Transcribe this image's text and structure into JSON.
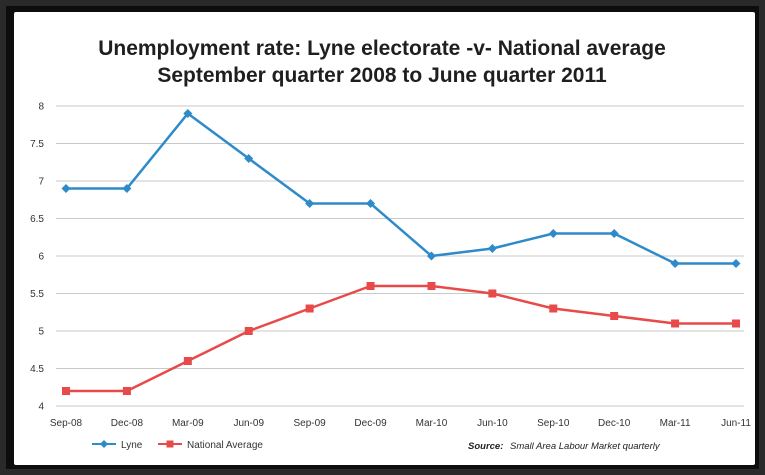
{
  "chart_data": {
    "type": "line",
    "title_line1": "Unemployment rate: Lyne electorate -v- National average",
    "title_line2": "September quarter 2008 to June quarter 2011",
    "categories": [
      "Sep-08",
      "Dec-08",
      "Mar-09",
      "Jun-09",
      "Sep-09",
      "Dec-09",
      "Mar-10",
      "Jun-10",
      "Sep-10",
      "Dec-10",
      "Mar-11",
      "Jun-11"
    ],
    "yticks": [
      "4",
      "4.5",
      "5",
      "5.5",
      "6",
      "6.5",
      "7",
      "7.5",
      "8"
    ],
    "ylim": [
      4,
      8
    ],
    "grid": true,
    "legend_position": "bottom-left",
    "series": [
      {
        "name": "Lyne",
        "color": "#2e8bc9",
        "marker": "diamond",
        "values": [
          6.9,
          6.9,
          7.9,
          7.3,
          6.7,
          6.7,
          6.0,
          6.1,
          6.3,
          6.3,
          5.9,
          5.9
        ]
      },
      {
        "name": "National Average",
        "color": "#e84a4a",
        "marker": "square",
        "values": [
          4.2,
          4.2,
          4.6,
          5.0,
          5.3,
          5.6,
          5.6,
          5.5,
          5.3,
          5.2,
          5.1,
          5.1
        ]
      }
    ],
    "source_label": "Source:",
    "source_text": "Small Area Labour Market quarterly"
  }
}
